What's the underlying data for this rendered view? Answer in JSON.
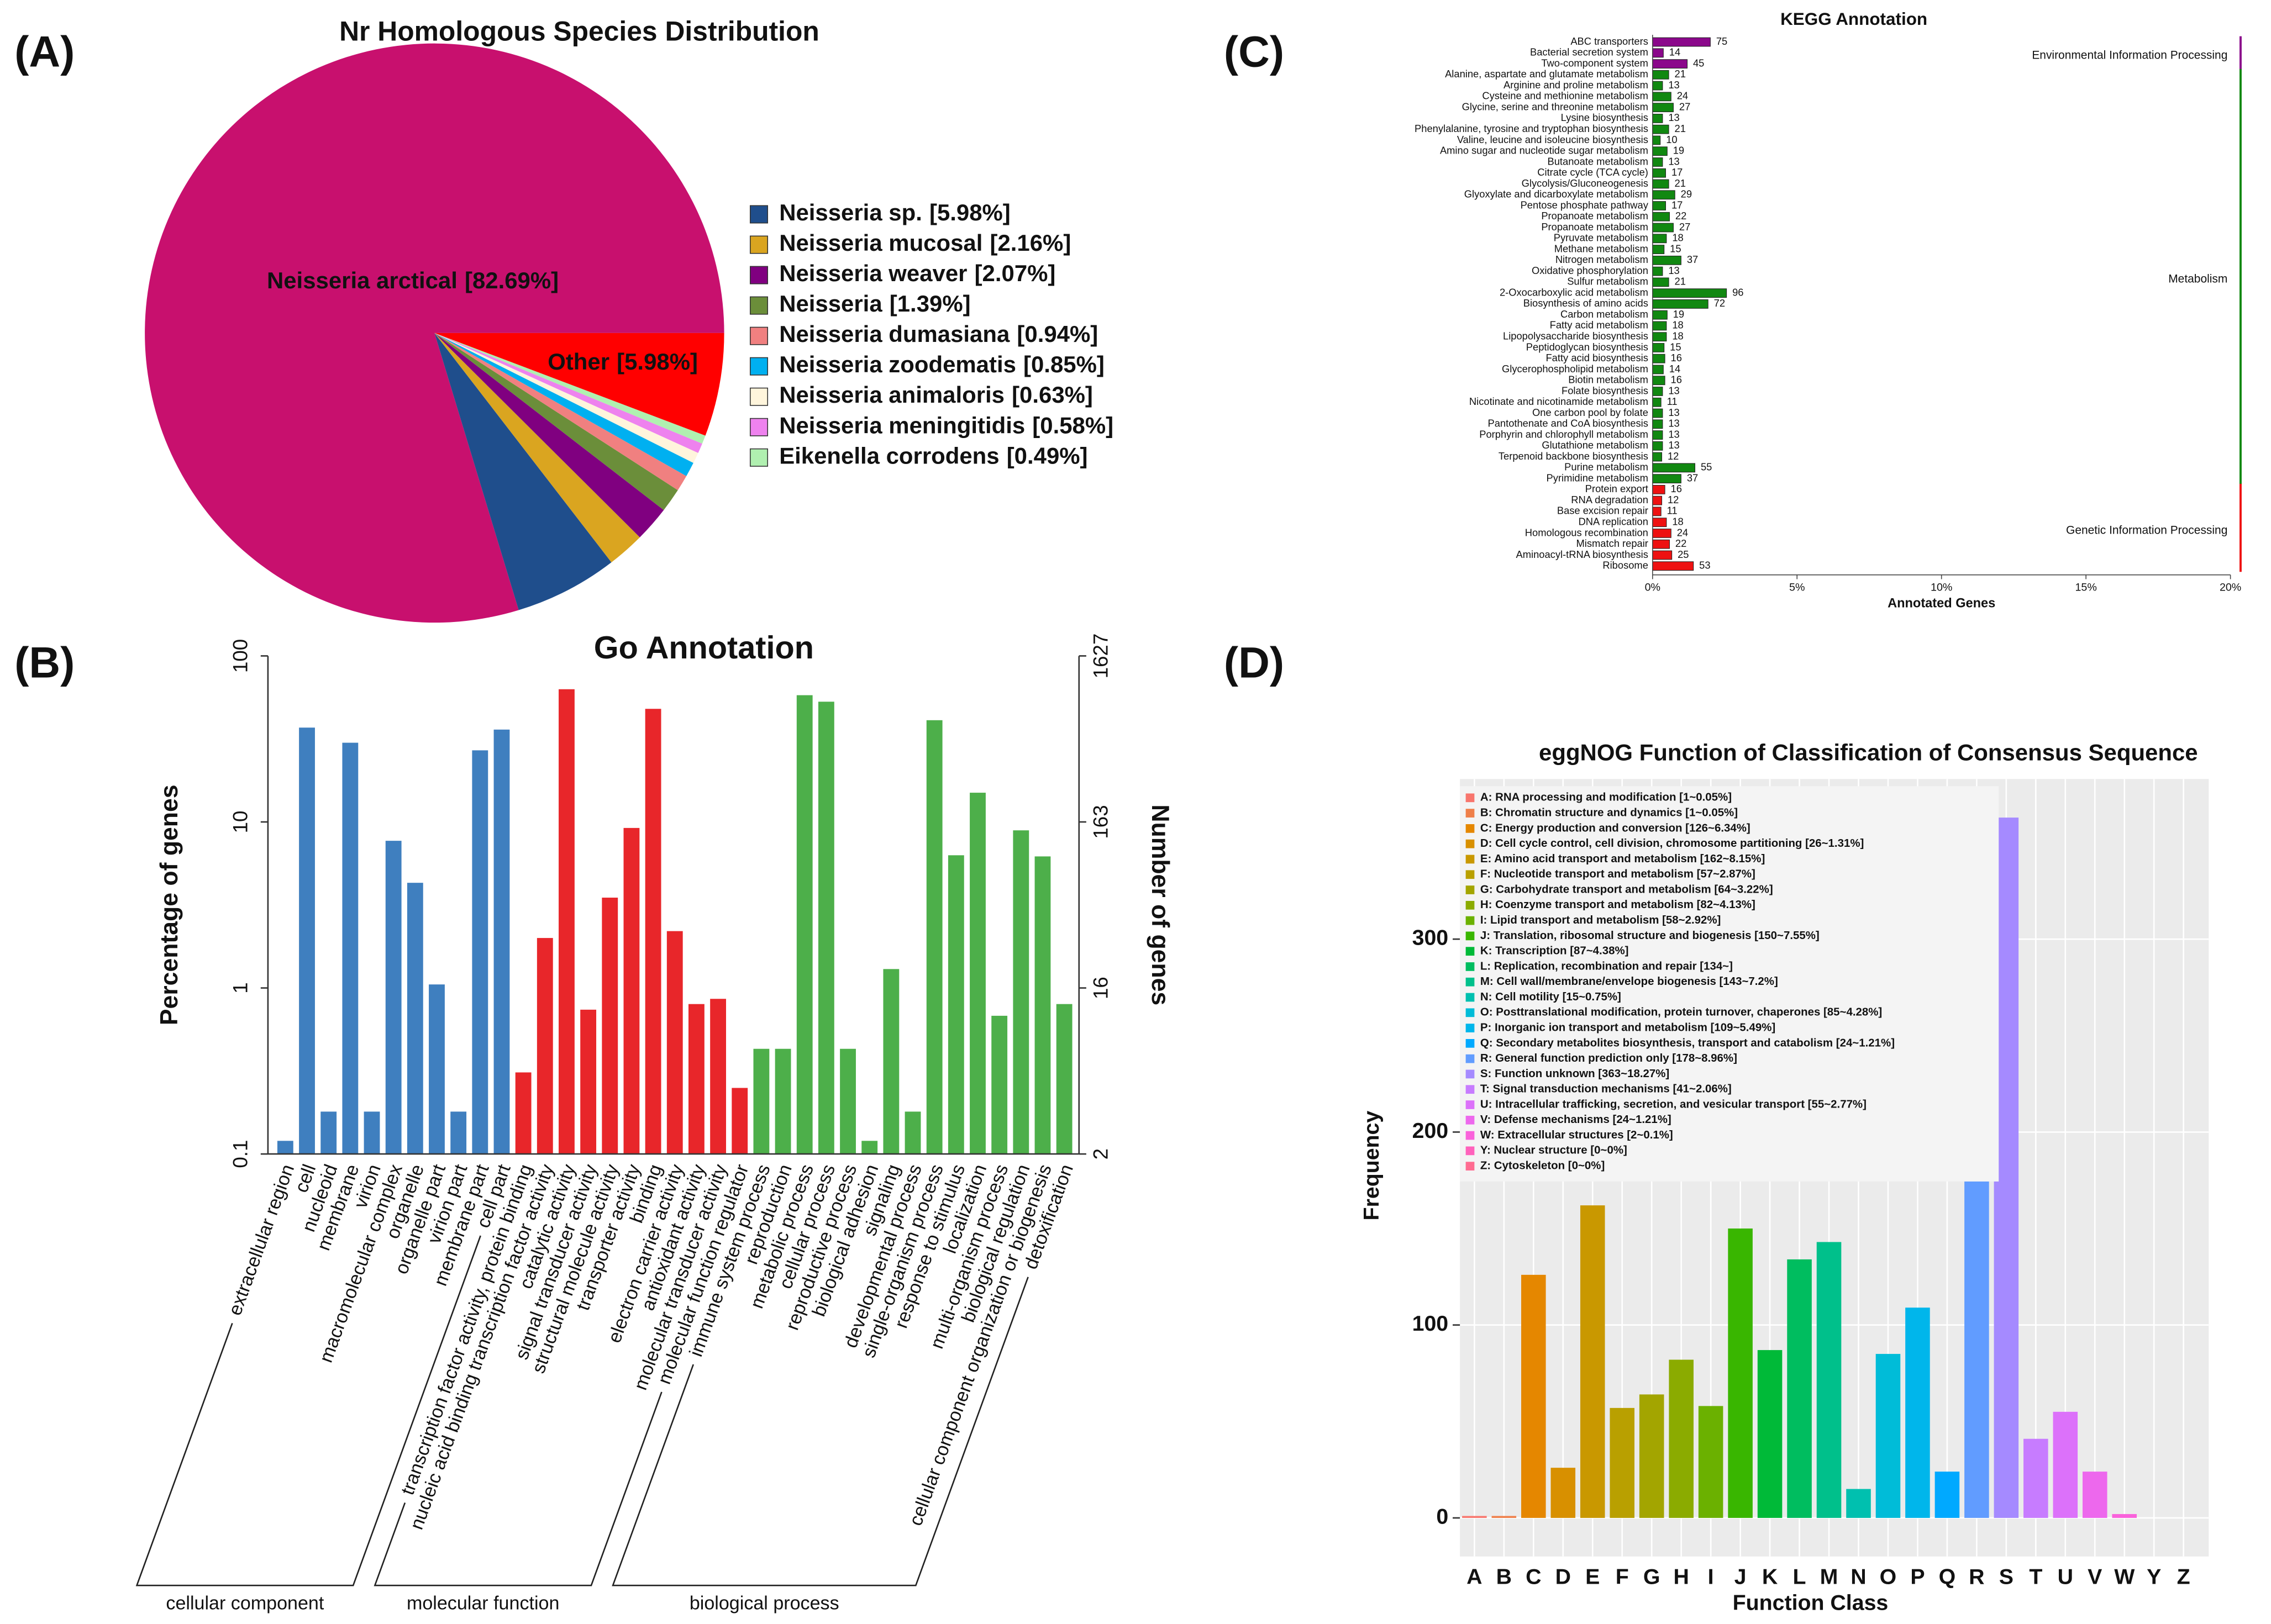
{
  "chart_data": [
    {
      "type": "pie",
      "panel_label": "(A)",
      "title": "Nr Homologous Species Distribution",
      "categories": [
        "Neisseria arctical",
        "Neisseria sp.",
        "Neisseria mucosal",
        "Neisseria weaver",
        "Neisseria",
        "Neisseria dumasiana",
        "Neisseria zoodematis",
        "Neisseria animaloris",
        "Neisseria meningitidis",
        "Eikenella corrodens",
        "Other"
      ],
      "values": [
        82.69,
        5.98,
        2.16,
        2.07,
        1.39,
        0.94,
        0.85,
        0.63,
        0.58,
        0.49,
        5.98
      ],
      "value_labels": [
        "[82.69%]",
        "[5.98%]",
        "[2.16%]",
        "[2.07%]",
        "[1.39%]",
        "[0.94%]",
        "[0.85%]",
        "[0.63%]",
        "[0.58%]",
        "[0.49%]",
        "[5.98%]"
      ],
      "colors": [
        "#c8106e",
        "#1f4e8c",
        "#daa520",
        "#800080",
        "#6b8e3a",
        "#f08080",
        "#00b0f0",
        "#fff5dc",
        "#ee82ee",
        "#b0f0b0",
        "#ff0000"
      ]
    },
    {
      "type": "bar",
      "panel_label": "(B)",
      "title": "Go Annotation",
      "ylabel": "Percentage of genes",
      "y2label": "Number of genes",
      "ylog": true,
      "ylim": [
        0.1,
        100
      ],
      "yticks": [
        0.1,
        1,
        10,
        100
      ],
      "y2lim": [
        1.627,
        1627
      ],
      "y2ticks": [
        {
          "value": 1.627,
          "label": "2"
        },
        {
          "value": 16.27,
          "label": "16"
        },
        {
          "value": 162.7,
          "label": "163"
        },
        1627
      ],
      "series": [
        {
          "name": "cellular component",
          "color": "#3f7fbf",
          "categories": [
            "extracellular region",
            "cell",
            "nucleoid",
            "membrane",
            "virion",
            "macromolecular complex",
            "organelle",
            "organelle part",
            "virion part",
            "membrane part",
            "cell part"
          ],
          "values": [
            0.12,
            37,
            0.18,
            30,
            0.18,
            7.7,
            4.3,
            1.05,
            0.18,
            27,
            36
          ]
        },
        {
          "name": "molecular function",
          "color": "#e8262a",
          "categories": [
            "transcription factor activity, protein binding",
            "nucleic acid binding transcription factor activity",
            "catalytic activity",
            "signal transducer activity",
            "structural molecule activity",
            "transporter activity",
            "binding",
            "electron carrier activity",
            "antioxidant activity",
            "molecular transducer activity",
            "molecular function regulator"
          ],
          "values": [
            0.31,
            2.0,
            63,
            0.74,
            3.5,
            9.2,
            48,
            2.2,
            0.8,
            0.86,
            0.25
          ]
        },
        {
          "name": "biological process",
          "color": "#4daf4a",
          "categories": [
            "immune system process",
            "reproduction",
            "metabolic process",
            "cellular process",
            "reproductive process",
            "biological adhesion",
            "signaling",
            "developmental process",
            "single-organism process",
            "response to stimulus",
            "localization",
            "multi-organism process",
            "biological regulation",
            "cellular component organization or biogenesis",
            "detoxification"
          ],
          "values": [
            0.43,
            0.43,
            58,
            53,
            0.43,
            0.12,
            1.3,
            0.18,
            41,
            6.3,
            15,
            0.68,
            8.9,
            6.2,
            0.8
          ]
        }
      ]
    },
    {
      "type": "bar",
      "orientation": "horizontal",
      "panel_label": "(C)",
      "title": "KEGG Annotation",
      "xlabel": "Annotated Genes",
      "xlim": [
        0,
        750
      ],
      "xticks": [
        {
          "value": 0,
          "label": "0%"
        },
        {
          "value": 187.5,
          "label": "5%"
        },
        {
          "value": 375,
          "label": "10%"
        },
        {
          "value": 562.5,
          "label": "15%"
        },
        {
          "value": 750,
          "label": "20%"
        }
      ],
      "series": [
        {
          "name": "Environmental Information Processing",
          "color": "#8b088b",
          "categories": [
            "ABC transporters",
            "Bacterial secretion system",
            "Two-component system"
          ],
          "values": [
            75,
            14,
            45
          ]
        },
        {
          "name": "Metabolism",
          "color": "#118811",
          "categories": [
            "Alanine, aspartate and glutamate metabolism",
            "Arginine and proline metabolism",
            "Cysteine and methionine metabolism",
            "Glycine, serine and threonine metabolism",
            "Lysine biosynthesis",
            "Phenylalanine, tyrosine and tryptophan biosynthesis",
            "Valine, leucine and isoleucine biosynthesis",
            "Amino sugar and nucleotide sugar metabolism",
            "Butanoate metabolism",
            "Citrate cycle (TCA cycle)",
            "Glycolysis/Gluconeogenesis",
            "Glyoxylate and dicarboxylate metabolism",
            "Pentose phosphate pathway",
            "Propanoate metabolism",
            "Propanoate metabolism",
            "Pyruvate metabolism",
            "Methane metabolism",
            "Nitrogen metabolism",
            "Oxidative phosphorylation",
            "Sulfur metabolism",
            "2-Oxocarboxylic acid metabolism",
            "Biosynthesis of amino acids",
            "Carbon metabolism",
            "Fatty acid metabolism",
            "Lipopolysaccharide biosynthesis",
            "Peptidoglycan biosynthesis",
            "Fatty acid biosynthesis",
            "Glycerophospholipid metabolism",
            "Biotin metabolism",
            "Folate biosynthesis",
            "Nicotinate and nicotinamide metabolism",
            "One carbon pool by folate",
            "Pantothenate and CoA biosynthesis",
            "Porphyrin and chlorophyll metabolism",
            "Glutathione metabolism",
            "Terpenoid backbone biosynthesis",
            "Purine metabolism",
            "Pyrimidine metabolism"
          ],
          "values": [
            21,
            13,
            24,
            27,
            13,
            21,
            10,
            19,
            13,
            17,
            21,
            29,
            17,
            22,
            27,
            18,
            15,
            37,
            13,
            21,
            96,
            72,
            19,
            18,
            18,
            15,
            16,
            14,
            16,
            13,
            11,
            13,
            13,
            13,
            13,
            12,
            55,
            37
          ]
        },
        {
          "name": "Genetic Information Processing",
          "color": "#ee1111",
          "categories": [
            "Protein export",
            "RNA degradation",
            "Base excision repair",
            "DNA replication",
            "Homologous recombination",
            "Mismatch repair",
            "Aminoacyl-tRNA biosynthesis",
            "Ribosome"
          ],
          "values": [
            16,
            12,
            11,
            18,
            24,
            22,
            25,
            53
          ]
        }
      ]
    },
    {
      "type": "bar",
      "panel_label": "(D)",
      "title": "eggNOG Function of Classification of Consensus Sequence",
      "xlabel": "Function Class",
      "ylabel": "Frequency",
      "categories": [
        "A",
        "B",
        "C",
        "D",
        "E",
        "F",
        "G",
        "H",
        "I",
        "J",
        "K",
        "L",
        "M",
        "N",
        "O",
        "P",
        "Q",
        "R",
        "S",
        "T",
        "U",
        "V",
        "W",
        "Y",
        "Z"
      ],
      "values": [
        1,
        1,
        126,
        26,
        162,
        57,
        64,
        82,
        58,
        150,
        87,
        134,
        143,
        15,
        85,
        109,
        24,
        178,
        363,
        41,
        55,
        24,
        2,
        0,
        0
      ],
      "colors": [
        "#f8766d",
        "#ef7f49",
        "#e58700",
        "#d89000",
        "#c99800",
        "#b9a000",
        "#a3a500",
        "#8bab00",
        "#6bb100",
        "#39b600",
        "#00ba38",
        "#00bd5f",
        "#00c08b",
        "#00c0af",
        "#00bcd8",
        "#00b6eb",
        "#00a9ff",
        "#619cff",
        "#a58aff",
        "#c77cff",
        "#dc71fa",
        "#ed68ed",
        "#fa62db",
        "#ff62bc",
        "#ff6c91"
      ],
      "legend": [
        "A: RNA processing and modification [1~0.05%]",
        "B: Chromatin structure and dynamics [1~0.05%]",
        "C: Energy production and conversion [126~6.34%]",
        "D: Cell cycle control, cell division, chromosome partitioning [26~1.31%]",
        "E: Amino acid transport and metabolism [162~8.15%]",
        "F: Nucleotide transport and metabolism [57~2.87%]",
        "G: Carbohydrate transport and metabolism [64~3.22%]",
        "H: Coenzyme transport and metabolism [82~4.13%]",
        "I: Lipid transport and metabolism [58~2.92%]",
        "J: Translation, ribosomal structure and biogenesis [150~7.55%]",
        "K: Transcription [87~4.38%]",
        "L: Replication, recombination and repair [134~]",
        "M: Cell wall/membrane/envelope biogenesis [143~7.2%]",
        "N: Cell motility [15~0.75%]",
        "O: Posttranslational modification, protein turnover, chaperones [85~4.28%]",
        "P: Inorganic ion transport and metabolism [109~5.49%]",
        "Q: Secondary metabolites biosynthesis, transport and catabolism [24~1.21%]",
        "R: General function prediction only [178~8.96%]",
        "S: Function unknown [363~18.27%]",
        "T: Signal transduction mechanisms [41~2.06%]",
        "U: Intracellular trafficking, secretion, and vesicular transport [55~2.77%]",
        "V: Defense mechanisms [24~1.21%]",
        "W: Extracellular structures [2~0.1%]",
        "Y: Nuclear structure [0~0%]",
        "Z: Cytoskeleton [0~0%]"
      ],
      "ylim": [
        -20,
        383
      ],
      "yticks": [
        0,
        100,
        200,
        300
      ],
      "grid": true
    }
  ]
}
